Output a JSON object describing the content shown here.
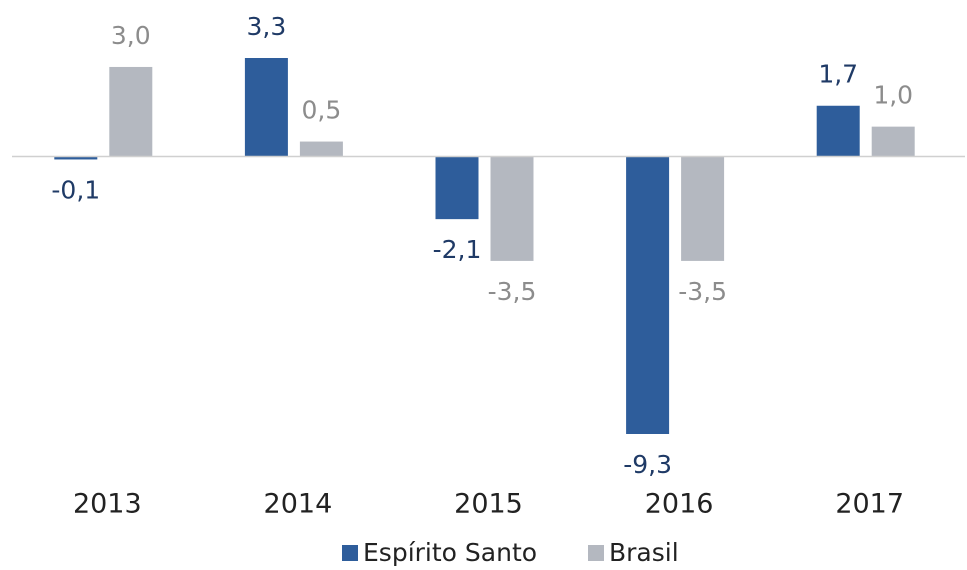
{
  "chart_data": {
    "type": "bar",
    "categories": [
      "2013",
      "2014",
      "2015",
      "2016",
      "2017"
    ],
    "series": [
      {
        "name": "Espírito Santo",
        "color": "#2e5d9b",
        "label_color": "#1f3a66",
        "values": [
          -0.1,
          3.3,
          -2.1,
          -9.3,
          1.7
        ],
        "value_labels": [
          "-0,1",
          "3,3",
          "-2,1",
          "-9,3",
          "1,7"
        ]
      },
      {
        "name": "Brasil",
        "color": "#b4b8c0",
        "label_color": "#8c8c8c",
        "values": [
          3.0,
          0.5,
          -3.5,
          -3.5,
          1.0
        ],
        "value_labels": [
          "3,0",
          "0,5",
          "-3,5",
          "-3,5",
          "1,0"
        ]
      }
    ],
    "legend": "bottom"
  }
}
